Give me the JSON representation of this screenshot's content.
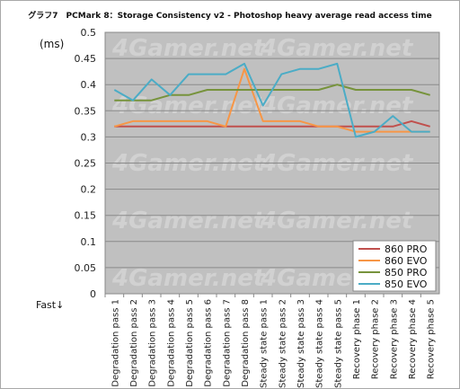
{
  "chart_data": {
    "type": "line",
    "title": "グラフ7　PCMark 8：Storage Consistency v2 - Photoshop heavy average read access time",
    "ylabel": "(ms)",
    "note": "Fast↓",
    "ylim": [
      0,
      0.5
    ],
    "yticks": [
      "0",
      "0.05",
      "0.1",
      "0.15",
      "0.2",
      "0.25",
      "0.3",
      "0.35",
      "0.4",
      "0.45",
      "0.5"
    ],
    "grid": true,
    "legend_position": "bottom-right",
    "categories": [
      "Degradation pass 1",
      "Degradation pass 2",
      "Degradation pass 3",
      "Degradation pass 4",
      "Degradation pass 5",
      "Degradation pass 6",
      "Degradation pass 7",
      "Degradation pass 8",
      "Steady state pass 1",
      "Steady state pass 2",
      "Steady state pass 3",
      "Steady state pass 4",
      "Steady state pass 5",
      "Recovery phase 1",
      "Recovery phase 2",
      "Recovery phase 3",
      "Recovery phase 4",
      "Recovery phase 5"
    ],
    "series": [
      {
        "name": "860 PRO",
        "color": "#c0504d",
        "values": [
          0.32,
          0.32,
          0.32,
          0.32,
          0.32,
          0.32,
          0.32,
          0.32,
          0.32,
          0.32,
          0.32,
          0.32,
          0.32,
          0.32,
          0.32,
          0.32,
          0.33,
          0.32
        ]
      },
      {
        "name": "860 EVO",
        "color": "#f79646",
        "values": [
          0.32,
          0.33,
          0.33,
          0.33,
          0.33,
          0.33,
          0.32,
          0.43,
          0.33,
          0.33,
          0.33,
          0.32,
          0.32,
          0.31,
          0.31,
          0.31,
          0.31,
          0.31
        ]
      },
      {
        "name": "850 PRO",
        "color": "#77933c",
        "values": [
          0.37,
          0.37,
          0.37,
          0.38,
          0.38,
          0.39,
          0.39,
          0.39,
          0.39,
          0.39,
          0.39,
          0.39,
          0.4,
          0.39,
          0.39,
          0.39,
          0.39,
          0.38
        ]
      },
      {
        "name": "850 EVO",
        "color": "#4bacc6",
        "values": [
          0.39,
          0.37,
          0.41,
          0.38,
          0.42,
          0.42,
          0.42,
          0.44,
          0.36,
          0.42,
          0.43,
          0.43,
          0.44,
          0.3,
          0.31,
          0.34,
          0.31,
          0.31
        ]
      }
    ],
    "watermark": "4Gamer.net"
  }
}
